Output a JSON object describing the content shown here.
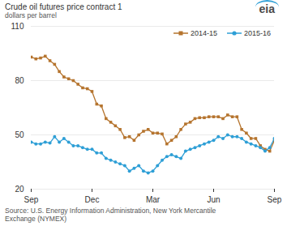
{
  "chart_data": {
    "type": "line",
    "title": "Crude oil futures price contract 1",
    "subtitle": "dollars per barrel",
    "source": "Source: U.S. Energy Information Administration, New York Mercantile Exchange (NYMEX)",
    "logo": "eia",
    "categories": [
      "Sep",
      null,
      null,
      null,
      null,
      null,
      null,
      null,
      null,
      null,
      null,
      null,
      null,
      "Dec",
      null,
      null,
      null,
      null,
      null,
      null,
      null,
      null,
      null,
      null,
      null,
      null,
      "Mar",
      null,
      null,
      null,
      null,
      null,
      null,
      null,
      null,
      null,
      null,
      null,
      null,
      "Jun",
      null,
      null,
      null,
      null,
      null,
      null,
      null,
      null,
      null,
      null,
      null,
      null,
      "Sep"
    ],
    "series": [
      {
        "name": "2014-15",
        "color": "#b5742e",
        "marker": "square",
        "line_style": "solid",
        "values": [
          93,
          92,
          92.5,
          93.5,
          91,
          89,
          85,
          82,
          81,
          80,
          78,
          76,
          75.5,
          74,
          67,
          66,
          59,
          57,
          55,
          53,
          48.5,
          49,
          47,
          50,
          52,
          53,
          51,
          51,
          50.5,
          45,
          47,
          49,
          53,
          56,
          57,
          59,
          59.5,
          59.5,
          60,
          60,
          60,
          59,
          61,
          60,
          60,
          53,
          51,
          48,
          48,
          44,
          42,
          41,
          47
        ]
      },
      {
        "name": "2015-16",
        "color": "#2e9fd6",
        "marker": "circle",
        "line_style": "solid",
        "values": [
          46,
          45,
          45,
          46,
          45.5,
          49,
          46,
          48,
          46,
          44,
          44,
          43,
          42,
          42,
          40,
          40,
          37,
          36,
          35,
          34,
          33,
          30,
          31.5,
          33,
          30,
          29,
          30,
          33,
          36,
          38,
          39,
          38,
          37,
          41,
          42,
          43,
          44,
          45,
          46,
          47,
          49,
          48,
          50,
          49,
          49,
          48,
          46,
          45,
          44,
          43,
          41,
          43,
          48
        ]
      }
    ],
    "ylim": [
      20,
      110
    ],
    "yticks": [
      20,
      50,
      80,
      110
    ],
    "grid": true,
    "legend": "upper right"
  }
}
